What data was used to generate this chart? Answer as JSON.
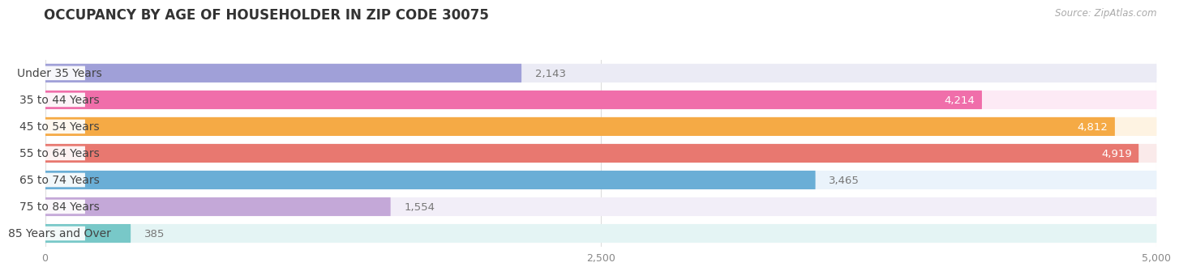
{
  "title": "OCCUPANCY BY AGE OF HOUSEHOLDER IN ZIP CODE 30075",
  "source": "Source: ZipAtlas.com",
  "categories": [
    "Under 35 Years",
    "35 to 44 Years",
    "45 to 54 Years",
    "55 to 64 Years",
    "65 to 74 Years",
    "75 to 84 Years",
    "85 Years and Over"
  ],
  "values": [
    2143,
    4214,
    4812,
    4919,
    3465,
    1554,
    385
  ],
  "bar_colors": [
    "#a0a0d8",
    "#f06eaa",
    "#f5aa45",
    "#e87870",
    "#6aaed6",
    "#c4a8d8",
    "#78c8c8"
  ],
  "bar_bg_colors": [
    "#ebebf5",
    "#fdeaf5",
    "#fef3e2",
    "#faeaea",
    "#eaf3fb",
    "#f2eef8",
    "#e4f4f4"
  ],
  "value_label_threshold": 0.7,
  "xlim": [
    0,
    5000
  ],
  "xticks": [
    0,
    2500,
    5000
  ],
  "fig_bg_color": "#ffffff",
  "title_fontsize": 12,
  "label_fontsize": 10,
  "value_fontsize": 9.5
}
